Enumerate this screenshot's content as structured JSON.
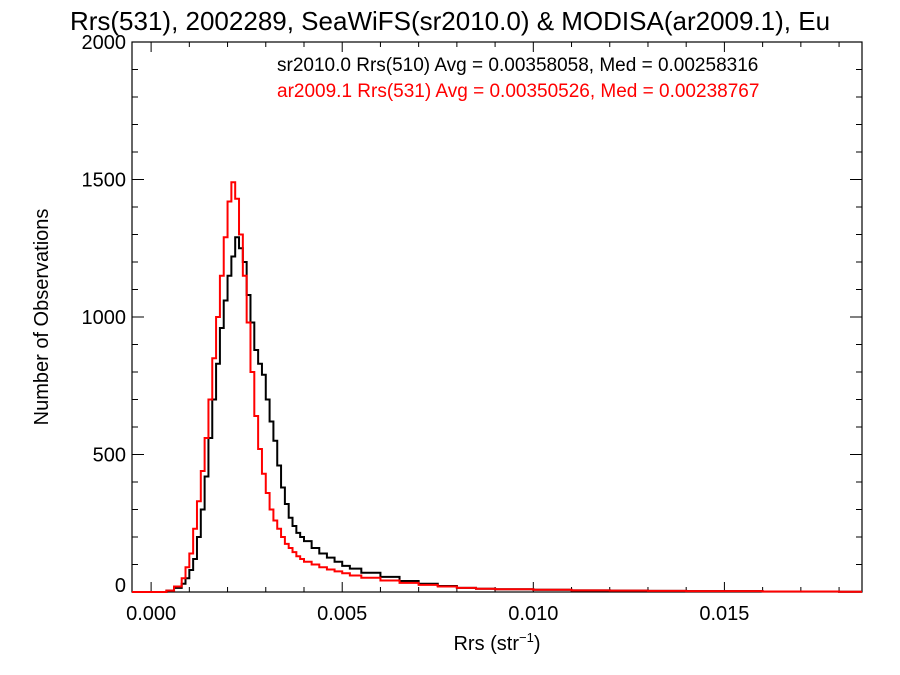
{
  "chart_data": {
    "type": "line",
    "title": "Rrs(531), 2002289, SeaWiFS(sr2010.0) & MODISA(ar2009.1), Eu",
    "xlabel_base": "Rrs (str",
    "xlabel_sup": "−1",
    "xlabel_close": ")",
    "ylabel": "Number of Observations",
    "xlim": [
      -0.0005,
      0.0186
    ],
    "ylim": [
      0,
      2000
    ],
    "x_ticks": [
      0.0,
      0.005,
      0.01,
      0.015
    ],
    "x_tick_labels": [
      "0.000",
      "0.005",
      "0.010",
      "0.015"
    ],
    "y_ticks": [
      0,
      500,
      1000,
      1500,
      2000
    ],
    "y_tick_labels": [
      "0",
      "500",
      "1000",
      "1500",
      "2000"
    ],
    "legend_placement": "top-right",
    "series": [
      {
        "label": "sr2010.0 Rrs(510) Avg = 0.00358058, Med = 0.00258316",
        "color": "#000000",
        "x": [
          -0.0005,
          0.0,
          0.0004,
          0.0006,
          0.0008,
          0.0009,
          0.001,
          0.0011,
          0.0012,
          0.0013,
          0.0014,
          0.0015,
          0.0016,
          0.0017,
          0.0018,
          0.0019,
          0.002,
          0.0021,
          0.0022,
          0.0023,
          0.0024,
          0.0025,
          0.0026,
          0.0027,
          0.0028,
          0.0029,
          0.003,
          0.0031,
          0.0032,
          0.0033,
          0.0034,
          0.0035,
          0.0036,
          0.0037,
          0.0038,
          0.0039,
          0.004,
          0.0042,
          0.0044,
          0.0046,
          0.0048,
          0.005,
          0.0052,
          0.0055,
          0.006,
          0.0065,
          0.007,
          0.0075,
          0.008,
          0.0085,
          0.009,
          0.01,
          0.011,
          0.012,
          0.013,
          0.014,
          0.015,
          0.016,
          0.017,
          0.018,
          0.0186
        ],
        "y": [
          0,
          0,
          5,
          15,
          30,
          50,
          80,
          120,
          200,
          300,
          420,
          560,
          700,
          830,
          960,
          1060,
          1150,
          1220,
          1290,
          1250,
          1200,
          1080,
          980,
          880,
          830,
          790,
          700,
          620,
          550,
          460,
          380,
          320,
          270,
          240,
          215,
          200,
          185,
          160,
          140,
          125,
          110,
          95,
          85,
          70,
          55,
          40,
          30,
          22,
          15,
          12,
          10,
          8,
          6,
          5,
          4,
          3,
          3,
          2,
          2,
          1,
          1
        ]
      },
      {
        "label": "ar2009.1 Rrs(531) Avg = 0.00350526, Med = 0.00238767",
        "color": "#ff0000",
        "x": [
          -0.0005,
          0.0,
          0.0004,
          0.0006,
          0.0008,
          0.0009,
          0.001,
          0.0011,
          0.0012,
          0.0013,
          0.0014,
          0.0015,
          0.0016,
          0.0017,
          0.0018,
          0.0019,
          0.002,
          0.0021,
          0.0022,
          0.0023,
          0.0024,
          0.0025,
          0.0026,
          0.0027,
          0.0028,
          0.0029,
          0.003,
          0.0031,
          0.0032,
          0.0033,
          0.0034,
          0.0035,
          0.0036,
          0.0037,
          0.0038,
          0.0039,
          0.004,
          0.0042,
          0.0044,
          0.0046,
          0.0048,
          0.005,
          0.0052,
          0.0055,
          0.006,
          0.0065,
          0.007,
          0.0075,
          0.008,
          0.0085,
          0.009,
          0.01,
          0.011,
          0.012,
          0.013,
          0.014,
          0.015,
          0.016,
          0.017,
          0.018,
          0.0186
        ],
        "y": [
          0,
          0,
          5,
          20,
          50,
          90,
          140,
          230,
          330,
          440,
          560,
          700,
          850,
          1000,
          1150,
          1290,
          1420,
          1490,
          1430,
          1300,
          1150,
          980,
          800,
          640,
          520,
          430,
          360,
          300,
          260,
          230,
          200,
          175,
          160,
          145,
          130,
          120,
          110,
          100,
          90,
          82,
          75,
          68,
          60,
          52,
          42,
          33,
          26,
          20,
          15,
          12,
          10,
          8,
          6,
          5,
          4,
          3,
          3,
          2,
          2,
          1,
          1
        ]
      }
    ]
  }
}
